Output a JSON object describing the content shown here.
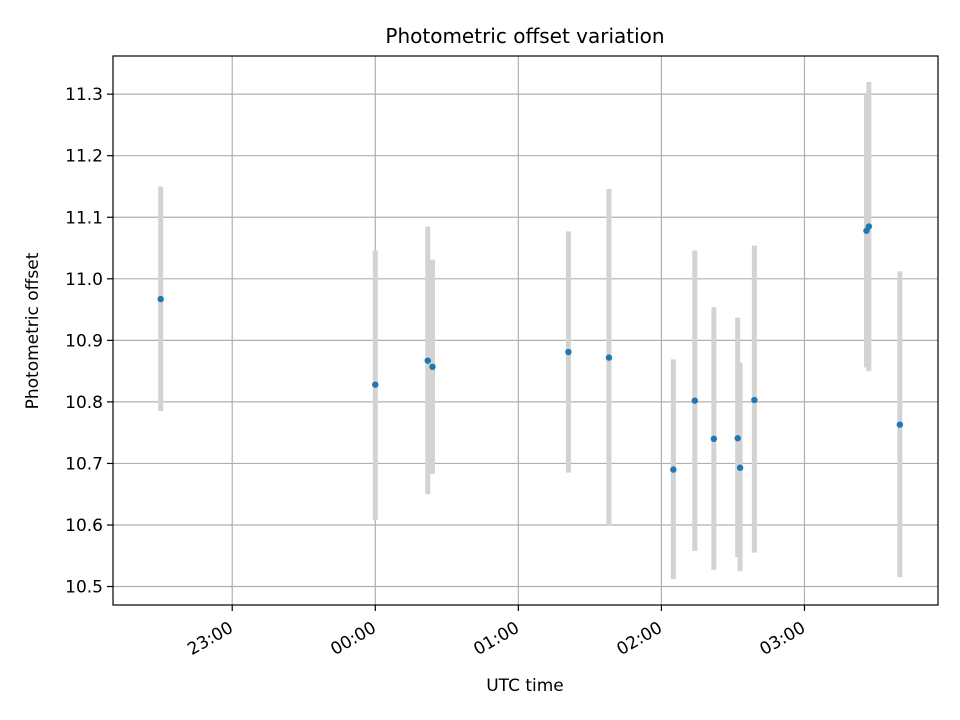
{
  "chart_data": {
    "type": "scatter",
    "title": "Photometric offset variation",
    "xlabel": "UTC time",
    "ylabel": "Photometric offset",
    "x_unit": "UTC clock time (minutes relative to midnight)",
    "xlim": [
      "22:10",
      "03:56"
    ],
    "ylim": [
      10.47,
      11.362
    ],
    "x_ticks": [
      "23:00",
      "00:00",
      "01:00",
      "02:00",
      "03:00"
    ],
    "y_ticks": [
      "10.5",
      "10.6",
      "10.7",
      "10.8",
      "10.9",
      "11.0",
      "11.1",
      "11.2",
      "11.3"
    ],
    "grid": true,
    "colors": {
      "point": "#1f77b4",
      "errorbar": "#d3d3d3",
      "grid": "#b0b0b0"
    },
    "points": [
      {
        "time": "22:30",
        "y": 10.967,
        "low": 10.785,
        "high": 11.15
      },
      {
        "time": "00:00",
        "y": 10.828,
        "low": 10.608,
        "high": 11.046
      },
      {
        "time": "00:22",
        "y": 10.867,
        "low": 10.65,
        "high": 11.085
      },
      {
        "time": "00:24",
        "y": 10.857,
        "low": 10.683,
        "high": 11.031
      },
      {
        "time": "01:21",
        "y": 10.881,
        "low": 10.685,
        "high": 11.077
      },
      {
        "time": "01:38",
        "y": 10.872,
        "low": 10.599,
        "high": 11.146
      },
      {
        "time": "02:05",
        "y": 10.69,
        "low": 10.512,
        "high": 10.869
      },
      {
        "time": "02:14",
        "y": 10.802,
        "low": 10.558,
        "high": 11.046
      },
      {
        "time": "02:22",
        "y": 10.74,
        "low": 10.527,
        "high": 10.954
      },
      {
        "time": "02:32",
        "y": 10.741,
        "low": 10.548,
        "high": 10.937
      },
      {
        "time": "02:33",
        "y": 10.693,
        "low": 10.525,
        "high": 10.864
      },
      {
        "time": "02:39",
        "y": 10.803,
        "low": 10.555,
        "high": 11.054
      },
      {
        "time": "03:26",
        "y": 11.078,
        "low": 10.856,
        "high": 11.3
      },
      {
        "time": "03:27",
        "y": 11.085,
        "low": 10.85,
        "high": 11.32
      },
      {
        "time": "03:40",
        "y": 10.763,
        "low": 10.515,
        "high": 11.012
      }
    ]
  }
}
